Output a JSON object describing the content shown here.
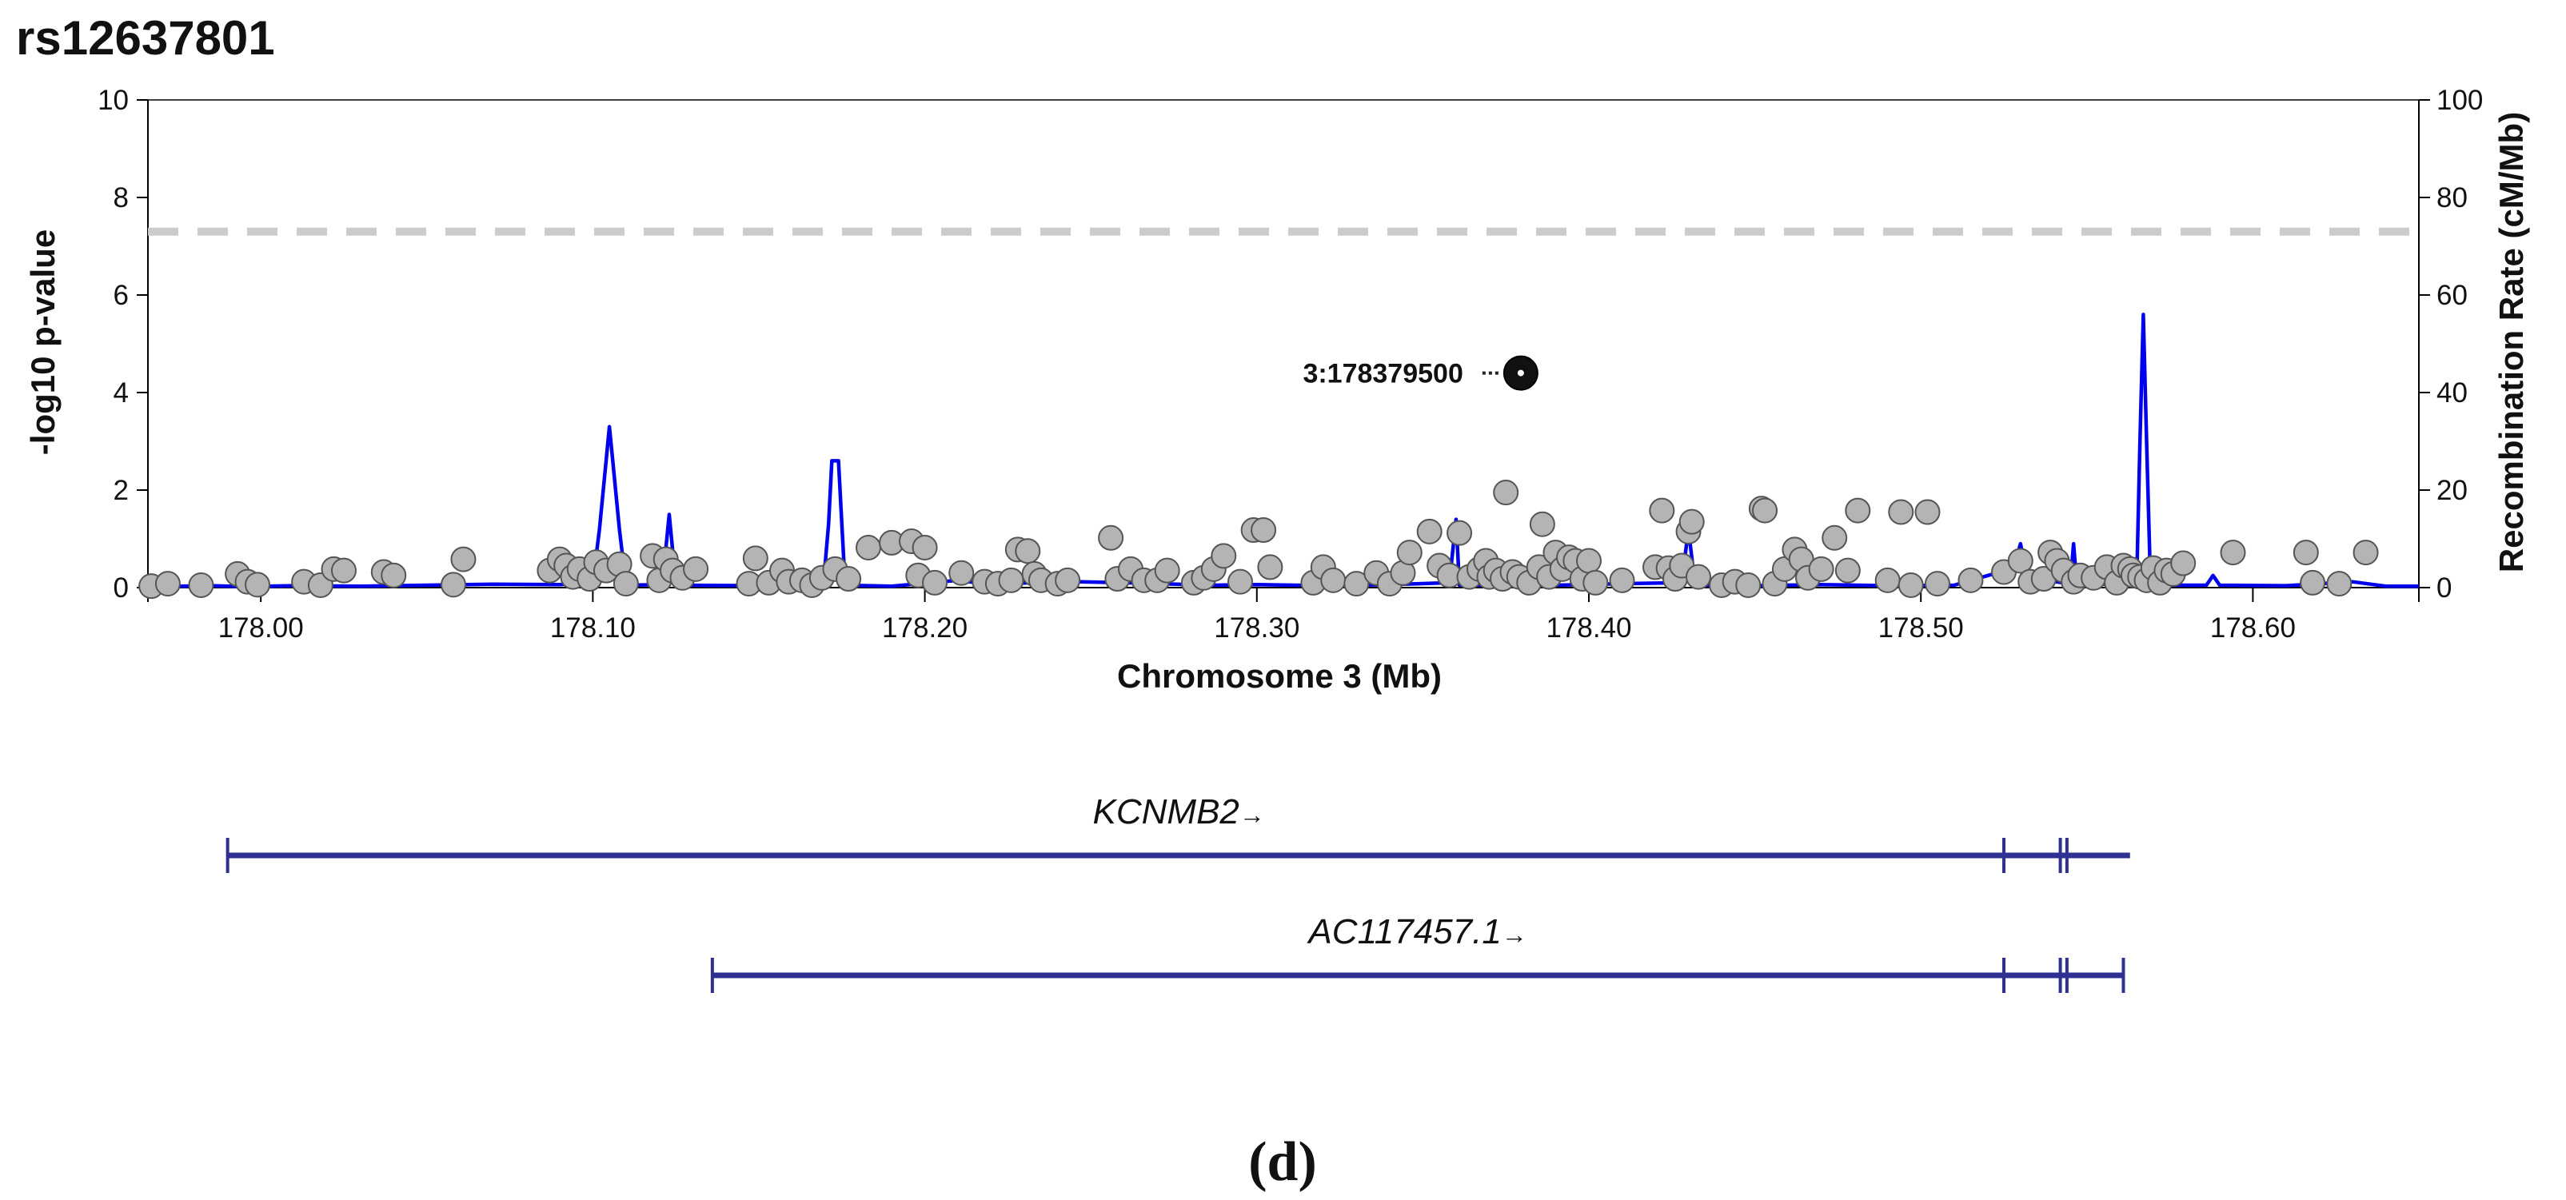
{
  "panel_label": "(d)",
  "colors": {
    "recombination": "#0000ee",
    "snp_fill": "#b4b4b4",
    "snp_stroke": "#555555",
    "lead_fill": "#111111",
    "threshold": "#cccccc",
    "gene": "#2e3192",
    "axis": "#000000"
  },
  "chart_data": {
    "type": "scatter",
    "title": "rs12637801",
    "xlabel": "Chromosome 3 (Mb)",
    "ylabel": "-log10 p-value",
    "y2label": "Recombination Rate (cM/Mb)",
    "xlim": [
      177.966,
      178.65
    ],
    "ylim": [
      0,
      10
    ],
    "y2lim": [
      0,
      100
    ],
    "x_ticks": [
      178.0,
      178.1,
      178.2,
      178.3,
      178.4,
      178.5,
      178.6
    ],
    "x_tick_labels": [
      "178.00",
      "178.10",
      "178.20",
      "178.30",
      "178.40",
      "178.50",
      "178.60"
    ],
    "y_ticks": [
      0,
      2,
      4,
      6,
      8,
      10
    ],
    "y_tick_labels": [
      "0",
      "2",
      "4",
      "6",
      "8",
      "10"
    ],
    "y2_ticks": [
      0,
      20,
      40,
      60,
      80,
      100
    ],
    "y2_tick_labels": [
      "0",
      "20",
      "40",
      "60",
      "80",
      "100"
    ],
    "significance_threshold": 7.3,
    "grid": false,
    "lead_snp": {
      "label": "3:178379500",
      "x": 178.3795,
      "y": 4.4
    },
    "snps": [
      [
        177.967,
        0.03
      ],
      [
        177.972,
        0.08
      ],
      [
        177.982,
        0.05
      ],
      [
        177.993,
        0.28
      ],
      [
        177.996,
        0.12
      ],
      [
        177.999,
        0.06
      ],
      [
        178.013,
        0.12
      ],
      [
        178.018,
        0.05
      ],
      [
        178.022,
        0.38
      ],
      [
        178.025,
        0.35
      ],
      [
        178.037,
        0.32
      ],
      [
        178.04,
        0.25
      ],
      [
        178.058,
        0.06
      ],
      [
        178.061,
        0.58
      ],
      [
        178.087,
        0.35
      ],
      [
        178.09,
        0.58
      ],
      [
        178.092,
        0.45
      ],
      [
        178.094,
        0.22
      ],
      [
        178.096,
        0.38
      ],
      [
        178.099,
        0.18
      ],
      [
        178.101,
        0.52
      ],
      [
        178.104,
        0.35
      ],
      [
        178.108,
        0.48
      ],
      [
        178.11,
        0.08
      ],
      [
        178.118,
        0.65
      ],
      [
        178.12,
        0.15
      ],
      [
        178.122,
        0.58
      ],
      [
        178.124,
        0.35
      ],
      [
        178.127,
        0.2
      ],
      [
        178.131,
        0.38
      ],
      [
        178.147,
        0.08
      ],
      [
        178.149,
        0.6
      ],
      [
        178.153,
        0.1
      ],
      [
        178.157,
        0.35
      ],
      [
        178.159,
        0.12
      ],
      [
        178.163,
        0.15
      ],
      [
        178.166,
        0.05
      ],
      [
        178.169,
        0.2
      ],
      [
        178.173,
        0.38
      ],
      [
        178.177,
        0.18
      ],
      [
        178.183,
        0.82
      ],
      [
        178.19,
        0.92
      ],
      [
        178.196,
        0.95
      ],
      [
        178.198,
        0.25
      ],
      [
        178.2,
        0.82
      ],
      [
        178.203,
        0.1
      ],
      [
        178.211,
        0.3
      ],
      [
        178.218,
        0.12
      ],
      [
        178.222,
        0.08
      ],
      [
        178.226,
        0.15
      ],
      [
        178.228,
        0.78
      ],
      [
        178.231,
        0.75
      ],
      [
        178.233,
        0.28
      ],
      [
        178.235,
        0.15
      ],
      [
        178.24,
        0.08
      ],
      [
        178.243,
        0.15
      ],
      [
        178.256,
        1.02
      ],
      [
        178.258,
        0.18
      ],
      [
        178.262,
        0.38
      ],
      [
        178.266,
        0.15
      ],
      [
        178.27,
        0.15
      ],
      [
        178.273,
        0.35
      ],
      [
        178.281,
        0.1
      ],
      [
        178.284,
        0.2
      ],
      [
        178.287,
        0.38
      ],
      [
        178.29,
        0.65
      ],
      [
        178.295,
        0.12
      ],
      [
        178.299,
        1.18
      ],
      [
        178.302,
        1.18
      ],
      [
        178.304,
        0.42
      ],
      [
        178.317,
        0.1
      ],
      [
        178.32,
        0.42
      ],
      [
        178.323,
        0.15
      ],
      [
        178.33,
        0.08
      ],
      [
        178.336,
        0.3
      ],
      [
        178.34,
        0.08
      ],
      [
        178.344,
        0.3
      ],
      [
        178.346,
        0.72
      ],
      [
        178.352,
        1.15
      ],
      [
        178.355,
        0.45
      ],
      [
        178.358,
        0.25
      ],
      [
        178.361,
        1.12
      ],
      [
        178.364,
        0.22
      ],
      [
        178.367,
        0.38
      ],
      [
        178.369,
        0.55
      ],
      [
        178.37,
        0.22
      ],
      [
        178.372,
        0.35
      ],
      [
        178.374,
        0.18
      ],
      [
        178.375,
        1.95
      ],
      [
        178.377,
        0.32
      ],
      [
        178.379,
        0.22
      ],
      [
        178.382,
        0.1
      ],
      [
        178.385,
        0.42
      ],
      [
        178.386,
        1.3
      ],
      [
        178.388,
        0.22
      ],
      [
        178.39,
        0.72
      ],
      [
        178.392,
        0.38
      ],
      [
        178.394,
        0.62
      ],
      [
        178.396,
        0.55
      ],
      [
        178.398,
        0.18
      ],
      [
        178.4,
        0.55
      ],
      [
        178.402,
        0.1
      ],
      [
        178.41,
        0.15
      ],
      [
        178.42,
        0.42
      ],
      [
        178.422,
        1.58
      ],
      [
        178.424,
        0.4
      ],
      [
        178.426,
        0.18
      ],
      [
        178.428,
        0.45
      ],
      [
        178.43,
        1.15
      ],
      [
        178.431,
        1.35
      ],
      [
        178.433,
        0.22
      ],
      [
        178.44,
        0.05
      ],
      [
        178.444,
        0.12
      ],
      [
        178.448,
        0.05
      ],
      [
        178.452,
        1.62
      ],
      [
        178.453,
        1.58
      ],
      [
        178.456,
        0.08
      ],
      [
        178.459,
        0.38
      ],
      [
        178.462,
        0.78
      ],
      [
        178.464,
        0.58
      ],
      [
        178.466,
        0.2
      ],
      [
        178.47,
        0.38
      ],
      [
        178.474,
        1.02
      ],
      [
        178.478,
        0.35
      ],
      [
        178.481,
        1.58
      ],
      [
        178.49,
        0.15
      ],
      [
        178.494,
        1.55
      ],
      [
        178.497,
        0.05
      ],
      [
        178.502,
        1.55
      ],
      [
        178.505,
        0.08
      ],
      [
        178.515,
        0.15
      ],
      [
        178.525,
        0.32
      ],
      [
        178.53,
        0.55
      ],
      [
        178.533,
        0.12
      ],
      [
        178.537,
        0.18
      ],
      [
        178.539,
        0.72
      ],
      [
        178.541,
        0.55
      ],
      [
        178.543,
        0.35
      ],
      [
        178.546,
        0.12
      ],
      [
        178.548,
        0.25
      ],
      [
        178.552,
        0.2
      ],
      [
        178.556,
        0.42
      ],
      [
        178.559,
        0.1
      ],
      [
        178.561,
        0.45
      ],
      [
        178.563,
        0.38
      ],
      [
        178.564,
        0.25
      ],
      [
        178.566,
        0.22
      ],
      [
        178.568,
        0.15
      ],
      [
        178.57,
        0.4
      ],
      [
        178.572,
        0.1
      ],
      [
        178.574,
        0.35
      ],
      [
        178.576,
        0.28
      ],
      [
        178.579,
        0.5
      ],
      [
        178.594,
        0.72
      ],
      [
        178.616,
        0.72
      ],
      [
        178.618,
        0.1
      ],
      [
        178.626,
        0.08
      ],
      [
        178.634,
        0.72
      ]
    ],
    "recombination": [
      [
        177.966,
        0.5
      ],
      [
        177.975,
        0.3
      ],
      [
        177.985,
        0.4
      ],
      [
        177.995,
        0.2
      ],
      [
        178.01,
        0.4
      ],
      [
        178.03,
        0.3
      ],
      [
        178.05,
        0.5
      ],
      [
        178.07,
        0.7
      ],
      [
        178.09,
        0.6
      ],
      [
        178.1,
        1.0
      ],
      [
        178.102,
        12
      ],
      [
        178.104,
        26
      ],
      [
        178.105,
        33
      ],
      [
        178.106,
        26
      ],
      [
        178.108,
        12
      ],
      [
        178.11,
        0.5
      ],
      [
        178.121,
        0.6
      ],
      [
        178.122,
        8
      ],
      [
        178.123,
        15
      ],
      [
        178.124,
        8
      ],
      [
        178.125,
        0.5
      ],
      [
        178.15,
        0.4
      ],
      [
        178.168,
        0.6
      ],
      [
        178.17,
        5
      ],
      [
        178.171,
        13
      ],
      [
        178.172,
        26
      ],
      [
        178.174,
        26
      ],
      [
        178.175,
        13
      ],
      [
        178.176,
        0.5
      ],
      [
        178.19,
        0.3
      ],
      [
        178.21,
        1.5
      ],
      [
        178.22,
        0.6
      ],
      [
        178.24,
        1.3
      ],
      [
        178.26,
        1.0
      ],
      [
        178.28,
        0.6
      ],
      [
        178.286,
        4
      ],
      [
        178.287,
        0.5
      ],
      [
        178.3,
        0.6
      ],
      [
        178.32,
        0.4
      ],
      [
        178.34,
        0.6
      ],
      [
        178.358,
        1.0
      ],
      [
        178.36,
        14
      ],
      [
        178.361,
        0.5
      ],
      [
        178.368,
        0.5
      ],
      [
        178.369,
        6
      ],
      [
        178.37,
        0.5
      ],
      [
        178.39,
        0.5
      ],
      [
        178.41,
        0.8
      ],
      [
        178.428,
        1.0
      ],
      [
        178.43,
        12
      ],
      [
        178.432,
        0.5
      ],
      [
        178.45,
        0.4
      ],
      [
        178.47,
        0.6
      ],
      [
        178.49,
        0.4
      ],
      [
        178.51,
        0.5
      ],
      [
        178.528,
        4
      ],
      [
        178.53,
        9
      ],
      [
        178.532,
        2
      ],
      [
        178.545,
        0.8
      ],
      [
        178.546,
        9
      ],
      [
        178.547,
        0.5
      ],
      [
        178.565,
        1.0
      ],
      [
        178.566,
        30
      ],
      [
        178.567,
        56
      ],
      [
        178.568,
        30
      ],
      [
        178.569,
        5
      ],
      [
        178.572,
        0.5
      ],
      [
        178.586,
        0.5
      ],
      [
        178.588,
        2.5
      ],
      [
        178.59,
        0.5
      ],
      [
        178.61,
        0.4
      ],
      [
        178.63,
        1.2
      ],
      [
        178.64,
        0.3
      ],
      [
        178.65,
        0.3
      ]
    ],
    "genes": [
      {
        "name": "KCNMB2",
        "arrow": "→",
        "start": 177.99,
        "end": 178.563,
        "exons": [
          177.99,
          178.525,
          178.542,
          178.544
        ]
      },
      {
        "name": "AC117457.1",
        "arrow": "→",
        "start": 178.136,
        "end": 178.561,
        "exons": [
          178.136,
          178.525,
          178.542,
          178.544,
          178.561
        ]
      }
    ]
  }
}
